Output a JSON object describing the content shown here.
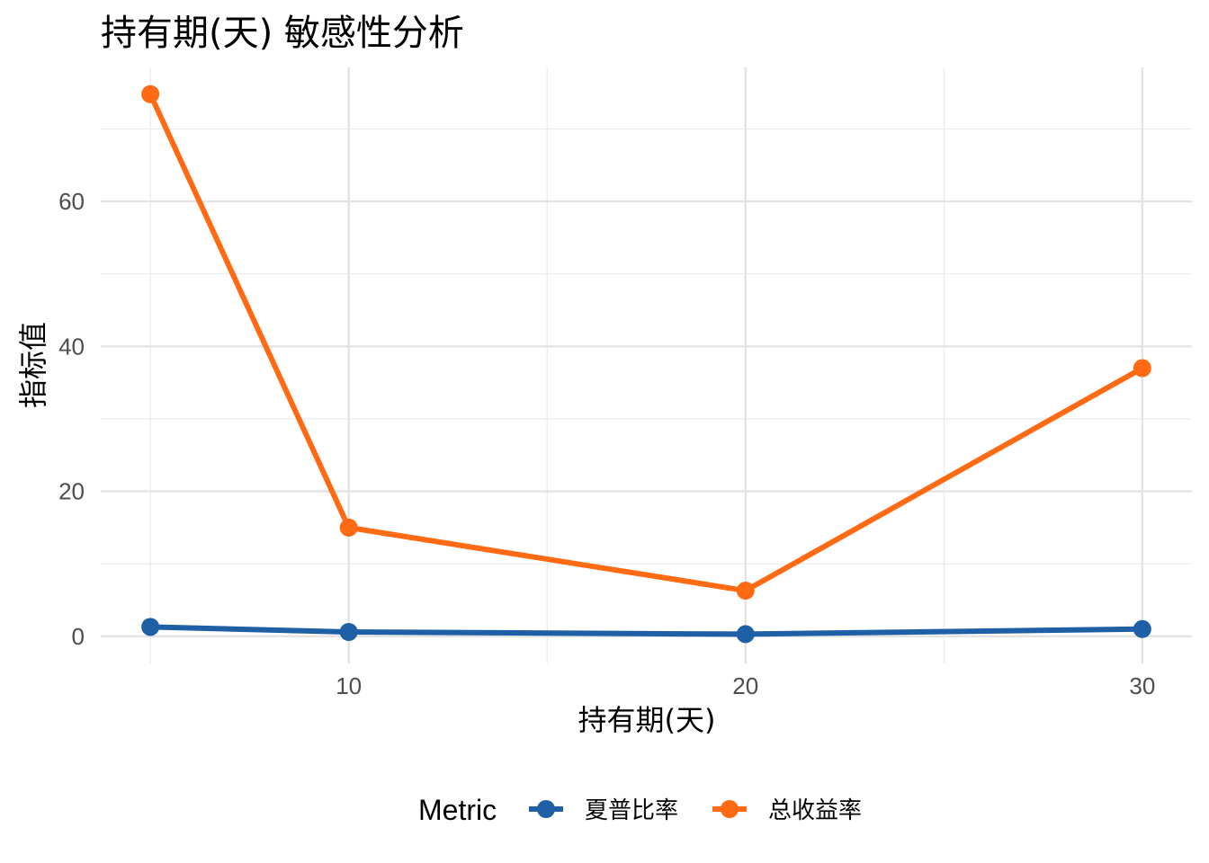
{
  "chart_data": {
    "type": "line",
    "title": "持有期(天) 敏感性分析",
    "xlabel": "持有期(天)",
    "ylabel": "指标值",
    "x": [
      5,
      10,
      20,
      30
    ],
    "xticks": [
      "10",
      "20",
      "30"
    ],
    "xtick_values": [
      10,
      20,
      30
    ],
    "yticks": [
      "0",
      "20",
      "40",
      "60"
    ],
    "ytick_values": [
      0,
      20,
      40,
      60
    ],
    "xlim": [
      3.75,
      31.25
    ],
    "ylim": [
      -3.74,
      78.49
    ],
    "grid": true,
    "legend_position": "bottom",
    "legend_title": "Metric",
    "series": [
      {
        "name": "夏普比率",
        "color": "#1f5fa6",
        "values": [
          1.3,
          0.6,
          0.3,
          1.0
        ]
      },
      {
        "name": "总收益率",
        "color": "#ff6a13",
        "values": [
          74.8,
          15.0,
          6.3,
          37.0
        ]
      }
    ]
  }
}
